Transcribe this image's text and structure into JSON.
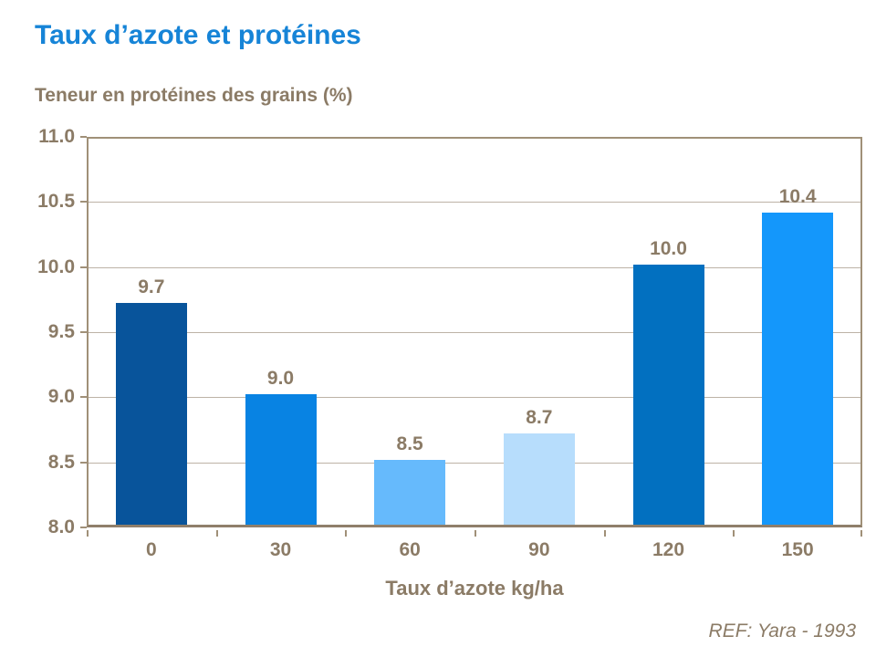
{
  "slide": {
    "title": "Taux d’azote et protéines",
    "footer_ref": "REF: Yara - 1993"
  },
  "colors": {
    "title_blue": "#1684D7",
    "text_brown": "#8B7B66",
    "gridline": "#BDB3A6",
    "frame": "#A09078",
    "axis_bottom": "#8F7F6B",
    "background": "#FFFFFF"
  },
  "chart_data": {
    "type": "bar",
    "title": "Teneur en protéines des grains (%)",
    "xlabel": "Taux d’azote kg/ha",
    "ylabel": "Teneur en protéines des grains (%)",
    "categories": [
      "0",
      "30",
      "60",
      "90",
      "120",
      "150"
    ],
    "values": [
      9.7,
      9.0,
      8.5,
      8.7,
      10.0,
      10.4
    ],
    "value_labels": [
      "9.7",
      "9.0",
      "8.5",
      "8.7",
      "10.0",
      "10.4"
    ],
    "bar_colors": [
      "#08549B",
      "#0883E3",
      "#66BAFC",
      "#B7DDFC",
      "#0270C0",
      "#1497FB"
    ],
    "ylim": [
      8.0,
      11.0
    ],
    "ytick_step": 0.5,
    "ytick_labels": [
      "8.0",
      "8.5",
      "9.0",
      "9.5",
      "10.0",
      "10.5",
      "11.0"
    ],
    "grid": true,
    "legend": false,
    "annotation": "REF: Yara - 1993"
  }
}
